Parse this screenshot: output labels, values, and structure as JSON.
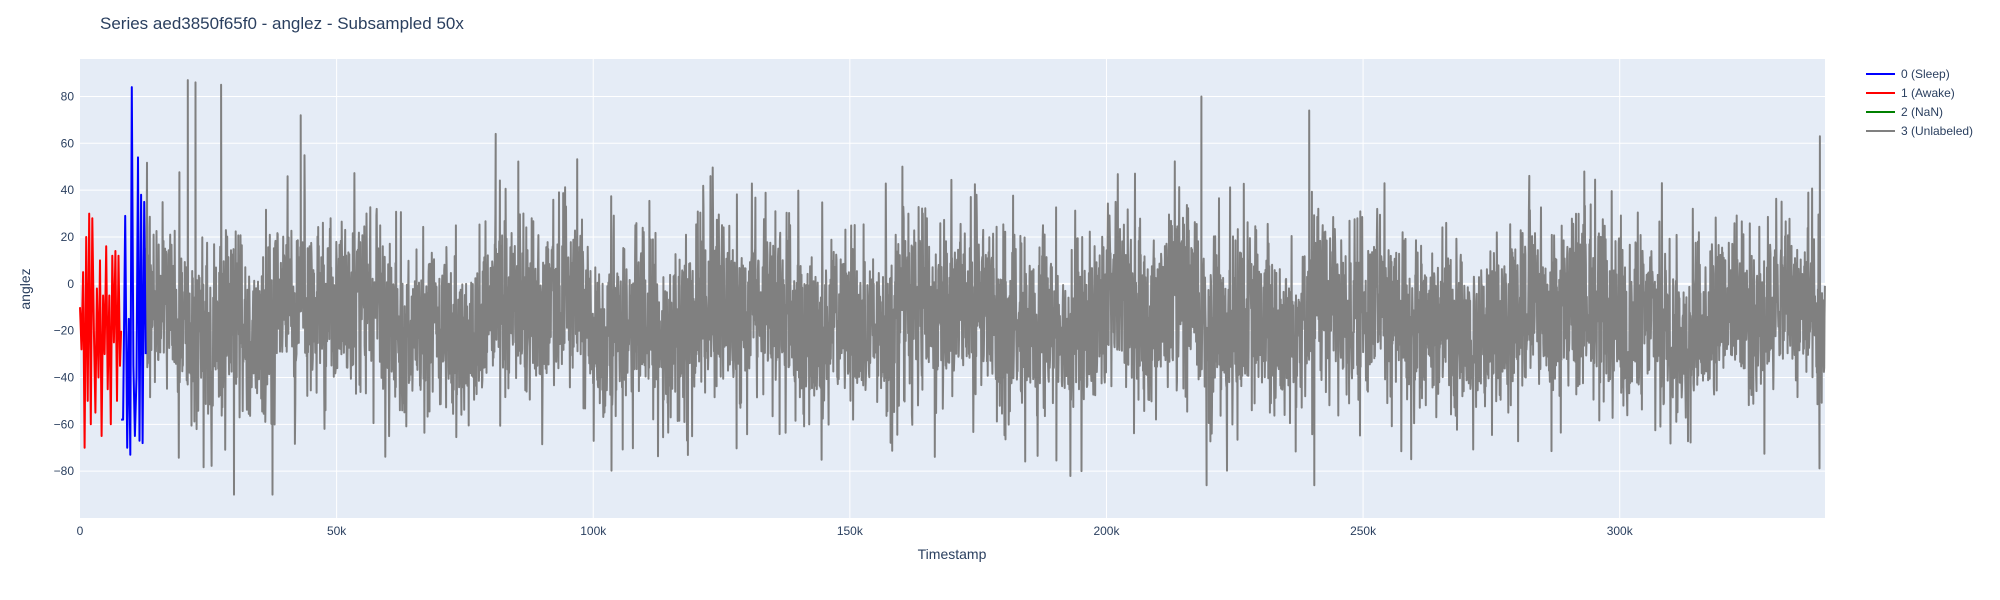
{
  "chart_data": {
    "type": "line",
    "title": "Series aed3850f65f0 - anglez - Subsampled 50x",
    "xlabel": "Timestamp",
    "ylabel": "anglez",
    "xlim": [
      0,
      340000
    ],
    "ylim": [
      -100,
      96
    ],
    "x_ticks": [
      0,
      50000,
      100000,
      150000,
      200000,
      250000,
      300000
    ],
    "x_tick_labels": [
      "0",
      "50k",
      "100k",
      "150k",
      "200k",
      "250k",
      "300k"
    ],
    "y_ticks": [
      -80,
      -60,
      -40,
      -20,
      0,
      20,
      40,
      60,
      80
    ],
    "y_tick_labels": [
      "−80",
      "−60",
      "−40",
      "−20",
      "0",
      "20",
      "40",
      "60",
      "80"
    ],
    "grid": true,
    "legend_position": "top-right",
    "background_color": "#e5ecf6",
    "series": [
      {
        "name": "0 (Sleep)",
        "color": "#0000ff",
        "x": [
          8000,
          8400,
          8800,
          9200,
          9500,
          9800,
          10100,
          10400,
          10700,
          11000,
          11300,
          11600,
          11900,
          12200,
          12500,
          12800
        ],
        "y": [
          -58,
          -58,
          29,
          -70,
          -15,
          -73,
          84,
          -35,
          -65,
          -40,
          54,
          -67,
          38,
          -68,
          35,
          -30
        ]
      },
      {
        "name": "1 (Awake)",
        "color": "#ff0000",
        "x": [
          0,
          300,
          600,
          900,
          1200,
          1500,
          1800,
          2100,
          2400,
          2700,
          3000,
          3300,
          3600,
          3900,
          4200,
          4500,
          4800,
          5100,
          5400,
          5700,
          6000,
          6300,
          6600,
          6900,
          7200,
          7500,
          7800,
          8000
        ],
        "y": [
          -10,
          -28,
          5,
          -70,
          20,
          -50,
          30,
          -60,
          28,
          -20,
          -55,
          -2,
          -40,
          10,
          -65,
          -5,
          -30,
          16,
          -45,
          -5,
          -60,
          12,
          -25,
          14,
          -50,
          12,
          -35,
          -20
        ]
      },
      {
        "name": "2 (NaN)",
        "color": "#008000",
        "x": [],
        "y": []
      },
      {
        "name": "3 (Unlabeled)",
        "color": "#808080",
        "x": [],
        "y": [],
        "x_range": [
          12800,
          340000
        ],
        "typical_range": [
          -60,
          50
        ],
        "extremes": [
          {
            "x": 21000,
            "y": 87
          },
          {
            "x": 22500,
            "y": 86
          },
          {
            "x": 27500,
            "y": 85
          },
          {
            "x": 30000,
            "y": -90
          },
          {
            "x": 37500,
            "y": -90
          },
          {
            "x": 43000,
            "y": 72
          },
          {
            "x": 81000,
            "y": 64
          },
          {
            "x": 218500,
            "y": 80
          },
          {
            "x": 219500,
            "y": -86
          },
          {
            "x": 239500,
            "y": 74
          },
          {
            "x": 240500,
            "y": -86
          },
          {
            "x": 339000,
            "y": 63
          }
        ]
      }
    ]
  }
}
